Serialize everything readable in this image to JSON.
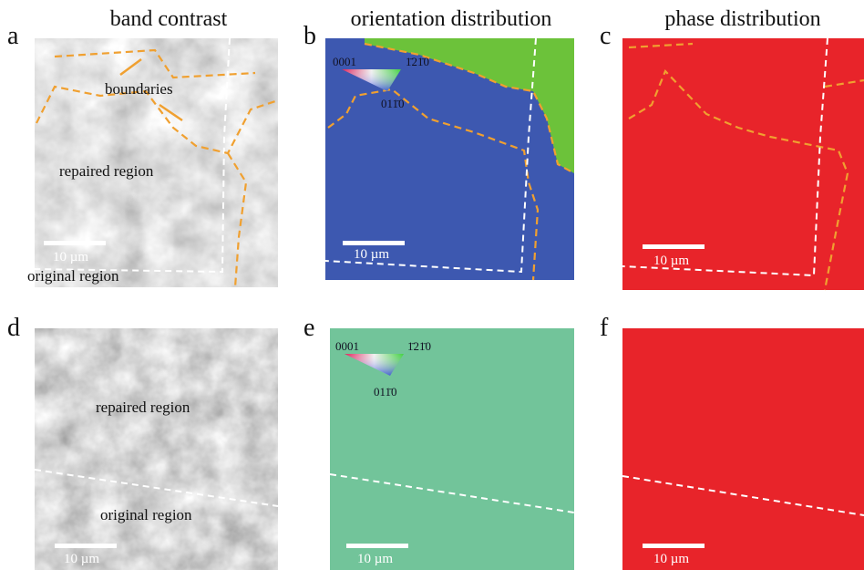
{
  "columns": [
    "band contrast",
    "orientation distribution",
    "phase distribution"
  ],
  "panels": [
    {
      "letter": "a",
      "labels": [
        "boundaries",
        "repaired region",
        "original region"
      ],
      "scale_bar": "10 µm"
    },
    {
      "letter": "b",
      "ipf_key": [
        "0001",
        "1̄21̄0",
        "011̄0"
      ],
      "scale_bar": "10 µm"
    },
    {
      "letter": "c",
      "scale_bar": "10 µm"
    },
    {
      "letter": "d",
      "labels": [
        "repaired region",
        "original region"
      ],
      "scale_bar": "10 µm"
    },
    {
      "letter": "e",
      "ipf_key": [
        "0001",
        "1̄21̄0",
        "011̄0"
      ],
      "scale_bar": "10 µm"
    },
    {
      "letter": "f",
      "scale_bar": "10 µm"
    }
  ]
}
